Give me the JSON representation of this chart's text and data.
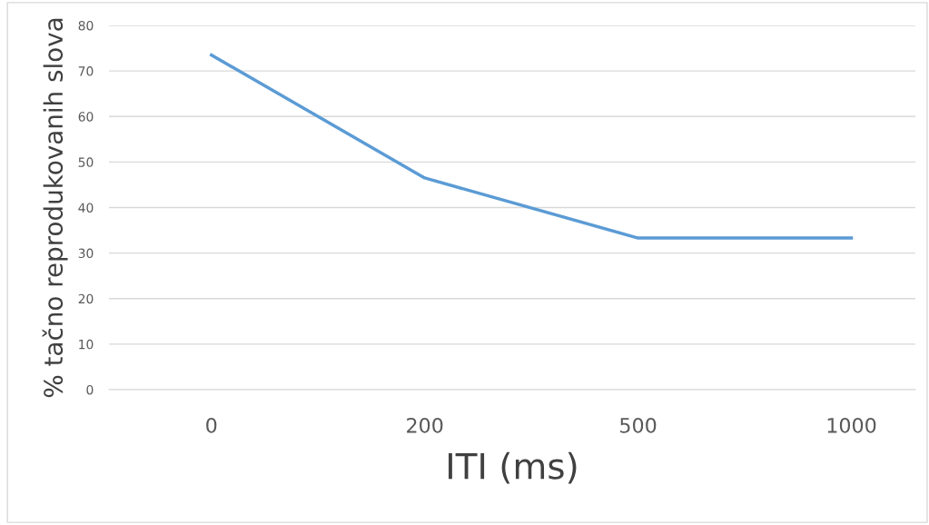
{
  "chart_data": {
    "type": "line",
    "xlabel": "ITI (ms)",
    "ylabel": "% tačno reprodukovanih slova",
    "categories": [
      "0",
      "200",
      "500",
      "1000"
    ],
    "series": [
      {
        "color": "#5b9bd5",
        "values": [
          73.5,
          46.5,
          33.3,
          33.3
        ]
      }
    ],
    "ylim": [
      0,
      80
    ],
    "yticks": [
      0,
      10,
      20,
      30,
      40,
      50,
      60,
      70,
      80
    ],
    "grid": "y",
    "legend": false,
    "marker": "none",
    "line_style": "solid"
  }
}
